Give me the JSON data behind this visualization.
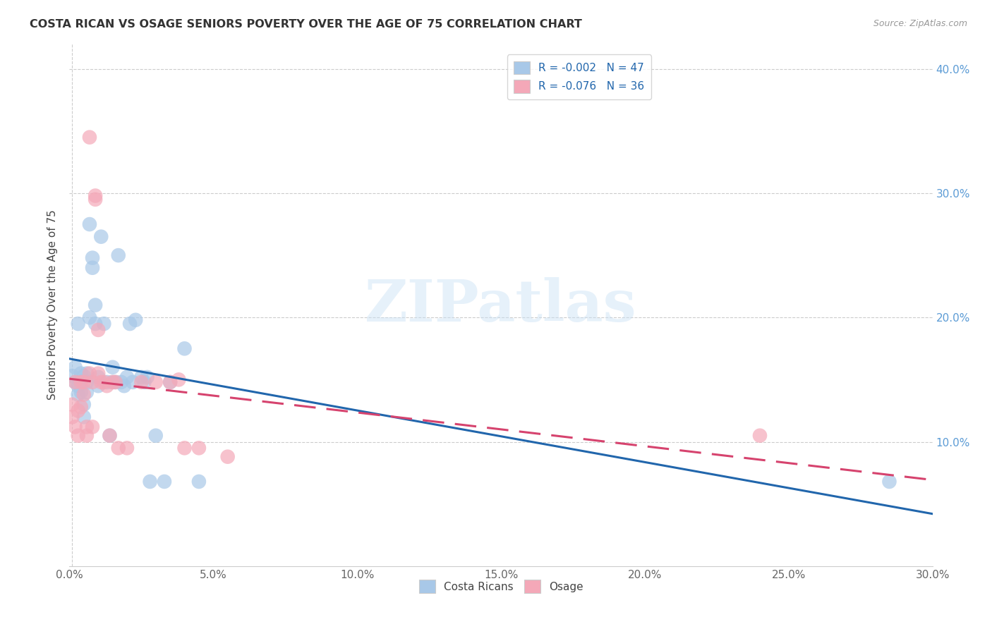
{
  "title": "COSTA RICAN VS OSAGE SENIORS POVERTY OVER THE AGE OF 75 CORRELATION CHART",
  "source": "Source: ZipAtlas.com",
  "ylabel": "Seniors Poverty Over the Age of 75",
  "xlim": [
    0.0,
    0.3
  ],
  "ylim": [
    0.0,
    0.42
  ],
  "legend1_label": "R = -0.002   N = 47",
  "legend2_label": "R = -0.076   N = 36",
  "watermark": "ZIPatlas",
  "blue_color": "#a8c8e8",
  "pink_color": "#f4a8b8",
  "blue_line_color": "#2166ac",
  "pink_line_color": "#d6436e",
  "costa_rican_x": [
    0.001,
    0.002,
    0.002,
    0.003,
    0.003,
    0.003,
    0.004,
    0.004,
    0.004,
    0.005,
    0.005,
    0.005,
    0.006,
    0.006,
    0.006,
    0.007,
    0.007,
    0.008,
    0.008,
    0.009,
    0.009,
    0.01,
    0.01,
    0.011,
    0.012,
    0.013,
    0.014,
    0.015,
    0.015,
    0.016,
    0.017,
    0.018,
    0.019,
    0.02,
    0.021,
    0.022,
    0.023,
    0.025,
    0.026,
    0.027,
    0.028,
    0.03,
    0.033,
    0.035,
    0.04,
    0.045,
    0.285
  ],
  "costa_rican_y": [
    0.153,
    0.148,
    0.16,
    0.195,
    0.145,
    0.138,
    0.155,
    0.148,
    0.14,
    0.153,
    0.13,
    0.12,
    0.155,
    0.148,
    0.14,
    0.2,
    0.275,
    0.248,
    0.24,
    0.21,
    0.195,
    0.152,
    0.145,
    0.265,
    0.195,
    0.148,
    0.105,
    0.148,
    0.16,
    0.148,
    0.25,
    0.148,
    0.145,
    0.152,
    0.195,
    0.148,
    0.198,
    0.152,
    0.148,
    0.152,
    0.068,
    0.105,
    0.068,
    0.148,
    0.175,
    0.068,
    0.068
  ],
  "osage_x": [
    0.001,
    0.001,
    0.002,
    0.002,
    0.003,
    0.003,
    0.004,
    0.004,
    0.005,
    0.005,
    0.006,
    0.006,
    0.007,
    0.007,
    0.008,
    0.008,
    0.009,
    0.009,
    0.01,
    0.01,
    0.011,
    0.012,
    0.013,
    0.014,
    0.015,
    0.016,
    0.017,
    0.02,
    0.025,
    0.03,
    0.035,
    0.038,
    0.04,
    0.045,
    0.055,
    0.24
  ],
  "osage_y": [
    0.13,
    0.12,
    0.148,
    0.112,
    0.125,
    0.105,
    0.148,
    0.128,
    0.148,
    0.138,
    0.112,
    0.105,
    0.155,
    0.345,
    0.148,
    0.112,
    0.298,
    0.295,
    0.19,
    0.155,
    0.148,
    0.148,
    0.145,
    0.105,
    0.148,
    0.148,
    0.095,
    0.095,
    0.148,
    0.148,
    0.148,
    0.15,
    0.095,
    0.095,
    0.088,
    0.105
  ]
}
